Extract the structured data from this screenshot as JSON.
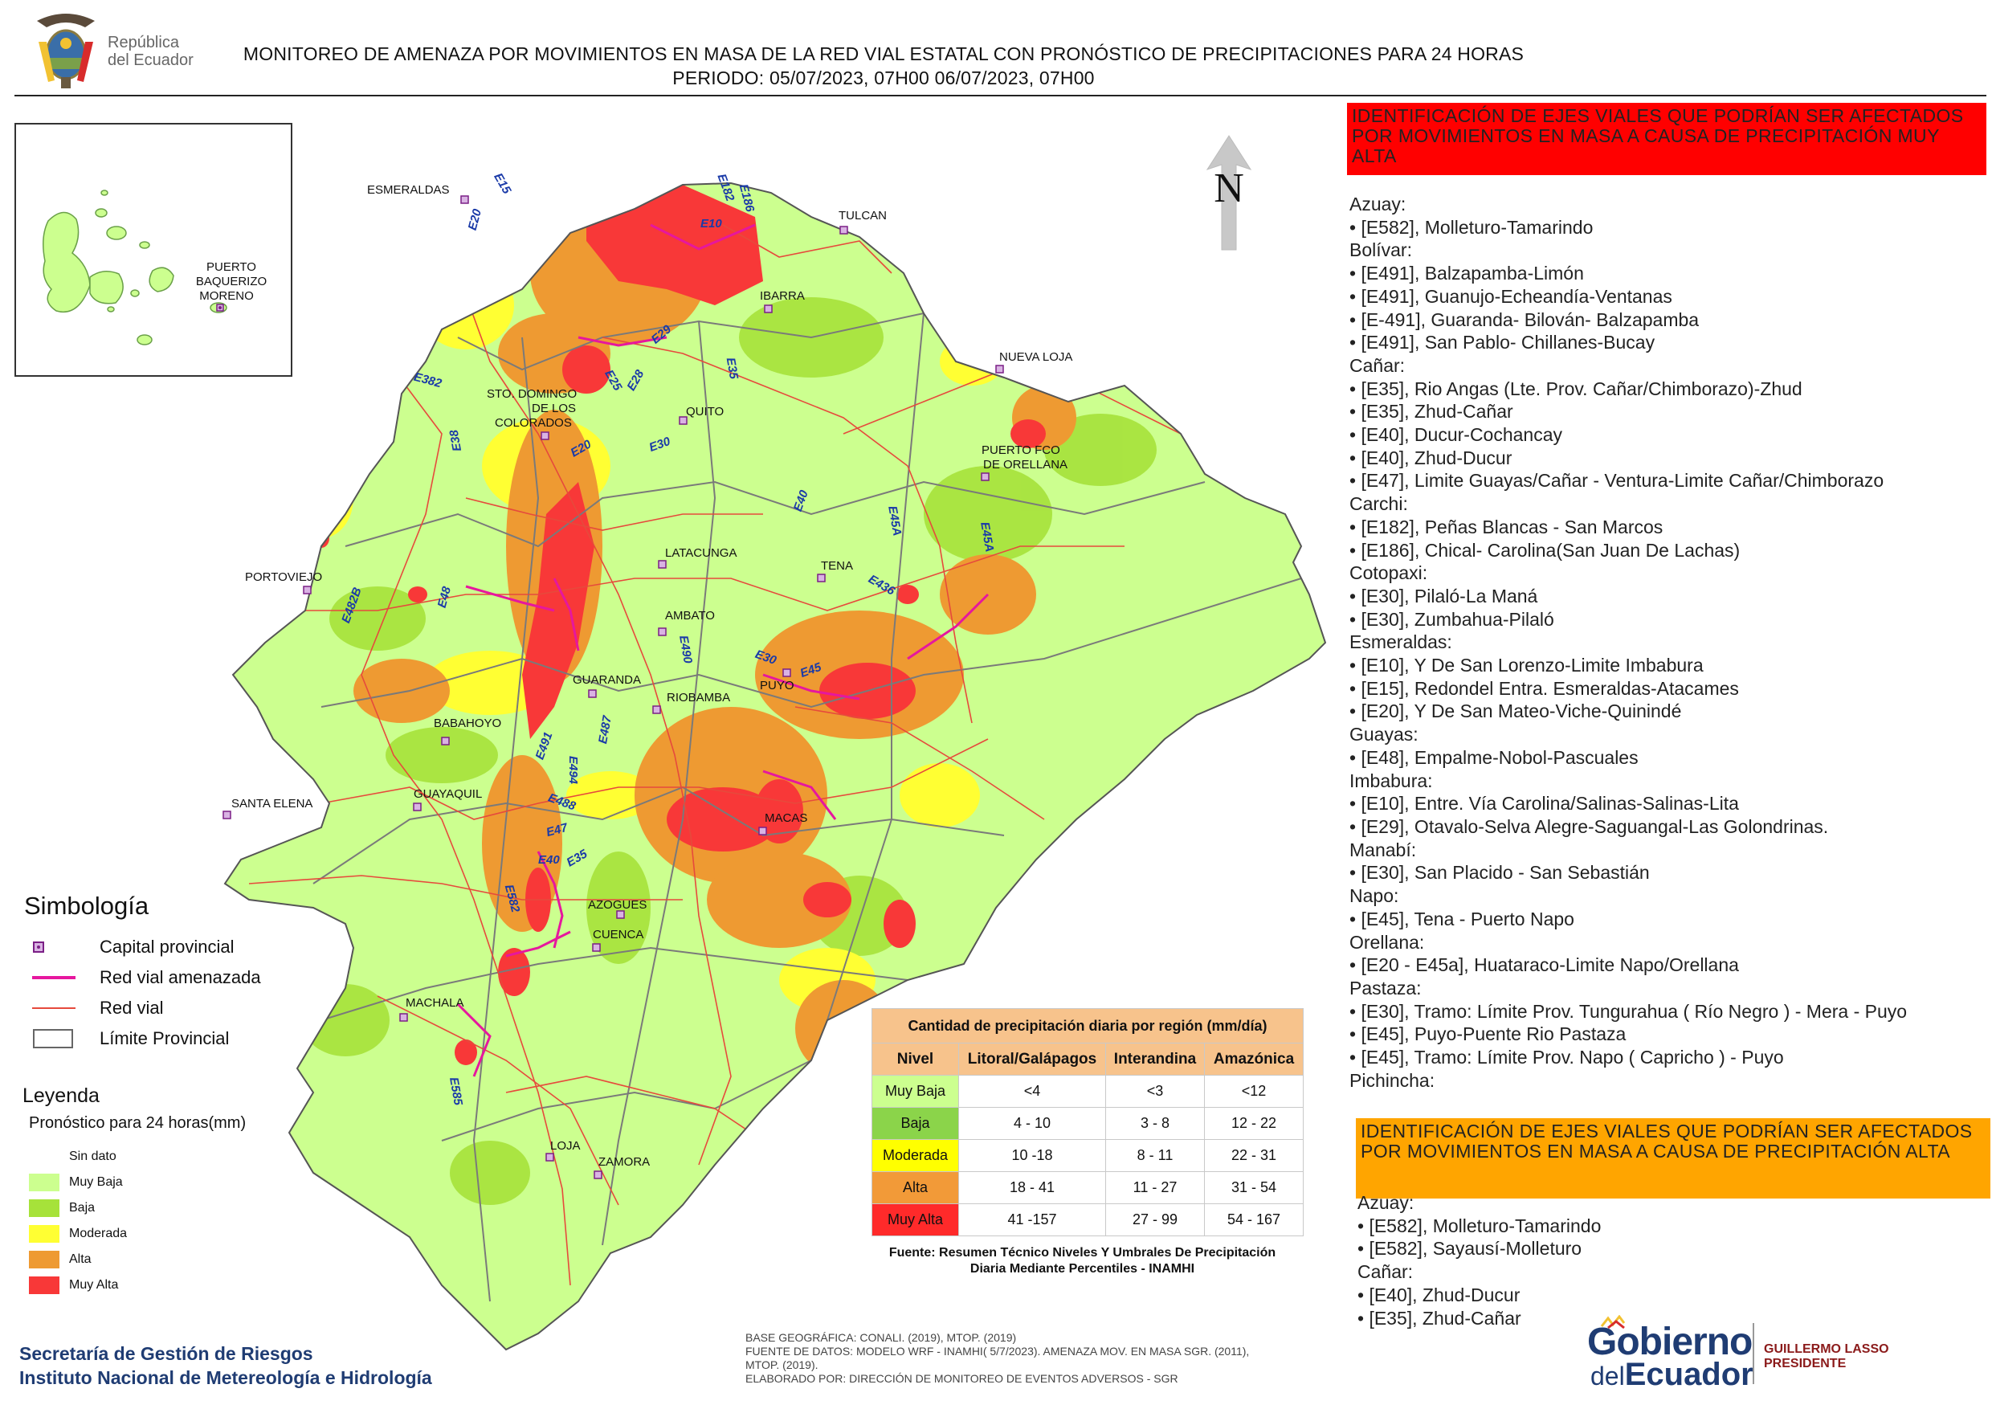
{
  "header": {
    "title_line1": "MONITOREO DE AMENAZA POR MOVIMIENTOS EN MASA DE LA RED VIAL  ESTATAL  CON PRONÓSTICO  DE  PRECIPITACIONES PARA 24 HORAS",
    "title_line2": "PERIODO: 05/07/2023, 07H00 06/07/2023, 07H00",
    "logo_line1": "República",
    "logo_line2": "del Ecuador"
  },
  "map": {
    "north_label": "N",
    "inset_city": [
      "PUERTO",
      "BAQUERIZO",
      "MORENO"
    ],
    "cities": [
      "ESMERALDAS",
      "TULCAN",
      "IBARRA",
      "NUEVA LOJA",
      "STO. DOMINGO",
      "DE LOS",
      "COLORADOS",
      "QUITO",
      "PUERTO FCO",
      "DE ORELLANA",
      "LATACUNGA",
      "TENA",
      "PORTOVIEJO",
      "AMBATO",
      "PUYO",
      "GUARANDA",
      "RIOBAMBA",
      "BABAHOYO",
      "SANTA ELENA",
      "GUAYAQUIL",
      "MACAS",
      "AZOGUES",
      "CUENCA",
      "MACHALA",
      "LOJA",
      "ZAMORA"
    ],
    "roads": [
      "E15",
      "E20",
      "E182",
      "E186",
      "E10",
      "E29",
      "E382",
      "E25",
      "E28",
      "E35",
      "E38",
      "E20",
      "E30",
      "E40",
      "E45A",
      "E45A",
      "E482B",
      "E48",
      "E436",
      "E490",
      "E30",
      "E45",
      "E491",
      "E487",
      "E494",
      "E488",
      "E47",
      "E40",
      "E35",
      "E582",
      "E585"
    ],
    "colors": {
      "muy_baja": "#ccff8f",
      "baja": "#a6e23a",
      "moderada": "#ffff33",
      "alta": "#ee9a32",
      "muy_alta": "#f83838",
      "road": "#e64a3c",
      "threatened": "#e6179e",
      "boundary": "#7a7a7a"
    }
  },
  "simbologia": {
    "title": "Simbología",
    "items": [
      {
        "label": "Capital provincial",
        "icon": "capital-marker-icon"
      },
      {
        "label": "Red vial amenazada",
        "icon": "threatened-road-line"
      },
      {
        "label": "Red vial",
        "icon": "road-line"
      },
      {
        "label": "Límite Provincial",
        "icon": "boundary-box"
      }
    ]
  },
  "leyenda": {
    "title": "Leyenda",
    "subtitle": "Pronóstico para 24 horas(mm)",
    "items": [
      {
        "label": "Sin dato",
        "color": "#ffffff"
      },
      {
        "label": "Muy Baja",
        "color": "#ccff8f"
      },
      {
        "label": "Baja",
        "color": "#a6e23a"
      },
      {
        "label": "Moderada",
        "color": "#ffff33"
      },
      {
        "label": "Alta",
        "color": "#ee9a32"
      },
      {
        "label": "Muy Alta",
        "color": "#f83838"
      }
    ]
  },
  "table": {
    "title": "Cantidad de precipitación diaria por región (mm/día)",
    "headers": [
      "Nivel",
      "Litoral/Galápagos",
      "Interandina",
      "Amazónica"
    ],
    "rows": [
      {
        "level": "Muy Baja",
        "color": "#ccff8f",
        "litoral": "<4",
        "interandina": "<3",
        "amazonica": "<12"
      },
      {
        "level": "Baja",
        "color": "#8bd44a",
        "litoral": "4 - 10",
        "interandina": "3 - 8",
        "amazonica": "12 - 22"
      },
      {
        "level": "Moderada",
        "color": "#ffff00",
        "litoral": "10 -18",
        "interandina": "8 - 11",
        "amazonica": "22 - 31"
      },
      {
        "level": "Alta",
        "color": "#f29a38",
        "litoral": "18 - 41",
        "interandina": "11 - 27",
        "amazonica": "31 - 54"
      },
      {
        "level": "Muy Alta",
        "color": "#ff2a2a",
        "litoral": "41 -157",
        "interandina": "27 - 99",
        "amazonica": "54 - 167"
      }
    ],
    "source": "Fuente: Resumen Técnico Niveles Y Umbrales De Precipitación Diaria Mediante Percentiles - INAMHI"
  },
  "panel_muy_alta": {
    "title": "IDENTIFICACIÓN DE EJES VIALES QUE PODRÍAN SER AFECTADOS POR MOVIMIENTOS EN MASA A CAUSA DE PRECIPITACIÓN MUY ALTA",
    "lines": [
      "Azuay:",
      "• [E582], Molleturo-Tamarindo",
      "Bolívar:",
      "• [E491], Balzapamba-Limón",
      "• [E491], Guanujo-Echeandía-Ventanas",
      "• [E-491], Guaranda- Bilován- Balzapamba",
      "• [E491], San Pablo- Chillanes-Bucay",
      "Cañar:",
      "• [E35], Rio Angas (Lte. Prov. Cañar/Chimborazo)-Zhud",
      "• [E35], Zhud-Cañar",
      "• [E40], Ducur-Cochancay",
      "• [E40], Zhud-Ducur",
      "• [E47], Limite Guayas/Cañar - Ventura-Limite Cañar/Chimborazo",
      "Carchi:",
      "• [E182], Peñas Blancas - San Marcos",
      "• [E186], Chical- Carolina(San Juan De Lachas)",
      "Cotopaxi:",
      "• [E30], Pilaló-La Maná",
      "• [E30], Zumbahua-Pilaló",
      "Esmeraldas:",
      "• [E10], Y De San Lorenzo-Limite Imbabura",
      "• [E15], Redondel Entra. Esmeraldas-Atacames",
      "• [E20], Y De San Mateo-Viche-Quinindé",
      "Guayas:",
      "• [E48], Empalme-Nobol-Pascuales",
      "Imbabura:",
      "• [E10], Entre. Vía Carolina/Salinas-Salinas-Lita",
      "• [E29], Otavalo-Selva Alegre-Saguangal-Las Golondrinas.",
      "Manabí:",
      "• [E30], San Placido - San Sebastián",
      "Napo:",
      "• [E45], Tena - Puerto Napo",
      "Orellana:",
      "• [E20 - E45a], Huataraco-Limite Napo/Orellana",
      "Pastaza:",
      "• [E30], Tramo: Límite Prov. Tungurahua ( Río Negro ) - Mera - Puyo",
      "• [E45], Puyo-Puente Rio Pastaza",
      "• [E45], Tramo: Límite Prov. Napo ( Capricho ) - Puyo",
      "Pichincha:"
    ]
  },
  "panel_alta": {
    "title": "IDENTIFICACIÓN DE EJES VIALES QUE PODRÍAN SER AFECTADOS POR MOVIMIENTOS EN MASA A CAUSA DE PRECIPITACIÓN  ALTA",
    "lines": [
      "Azuay:",
      "• [E582], Molleturo-Tamarindo",
      "• [E582], Sayausí-Molleturo",
      "Cañar:",
      "• [E40], Zhud-Ducur",
      "• [E35], Zhud-Cañar"
    ]
  },
  "footer": {
    "org_line1": "Secretaría de Gestión de Riesgos",
    "org_line2": "Instituto Nacional de Metereología e Hidrología",
    "credit1": "BASE GEOGRÁFICA: CONALI. (2019), MTOP. (2019)",
    "credit2": "FUENTE DE DATOS: MODELO WRF - INAMHI( 5/7/2023).  AMENAZA MOV. EN MASA SGR. (2011), MTOP. (2019).",
    "credit3": "ELABORADO POR: DIRECCIÓN DE MONITOREO DE EVENTOS ADVERSOS - SGR",
    "gob1": "Gobierno",
    "gob2_small": "del",
    "gob2_big": "Ecuador",
    "president1": "GUILLERMO LASSO",
    "president2": "PRESIDENTE"
  }
}
